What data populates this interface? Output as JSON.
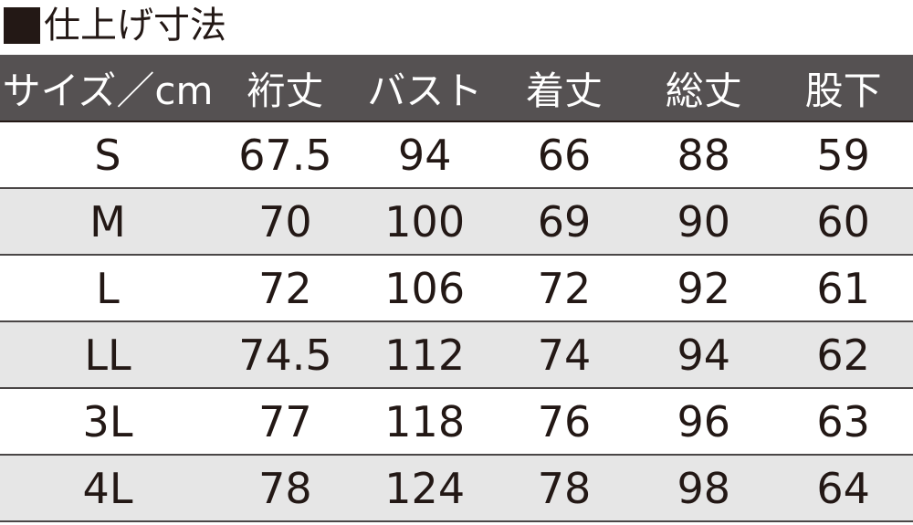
{
  "title": "仕上げ寸法",
  "icon": "black-square-icon",
  "colors": {
    "header_bg": "#555152",
    "alt_row_bg": "#e6e6e6",
    "text": "#231815"
  },
  "headers": [
    "サイズ／cm",
    "裄丈",
    "バスト",
    "着丈",
    "総丈",
    "股下"
  ],
  "rows": [
    [
      "S",
      "67.5",
      "94",
      "66",
      "88",
      "59"
    ],
    [
      "M",
      "70",
      "100",
      "69",
      "90",
      "60"
    ],
    [
      "L",
      "72",
      "106",
      "72",
      "92",
      "61"
    ],
    [
      "LL",
      "74.5",
      "112",
      "74",
      "94",
      "62"
    ],
    [
      "3L",
      "77",
      "118",
      "76",
      "96",
      "63"
    ],
    [
      "4L",
      "78",
      "124",
      "78",
      "98",
      "64"
    ]
  ]
}
